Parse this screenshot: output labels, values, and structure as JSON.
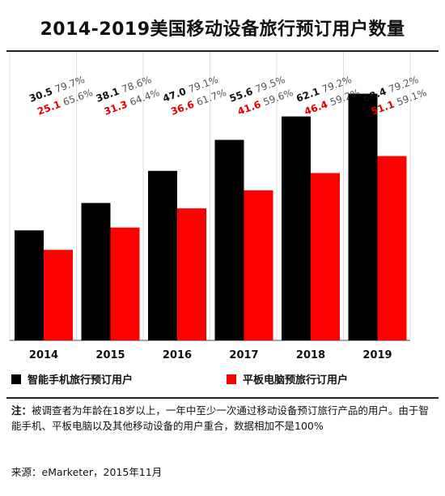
{
  "title": "2014-2019美国移动设备旅行预订用户数量",
  "legend": [
    {
      "label": "智能手机旅行预订用户",
      "color": "#000000"
    },
    {
      "label": "平板电脑预旅行订用户",
      "color": "#ff0000"
    }
  ],
  "note": {
    "prefix": "注：",
    "text": "被调查者为年龄在18岁以上，一年中至少一次通过移动设备预订旅行产品的用户。由于智能手机、平板电脑以及其他移动设备的用户重合，数据相加不是100%"
  },
  "source": "来源：eMarketer，2015年11月",
  "chart_data": {
    "type": "bar",
    "categories": [
      "2014",
      "2015",
      "2016",
      "2017",
      "2018",
      "2019"
    ],
    "series": [
      {
        "name": "智能手机旅行预订用户",
        "values": [
          30.5,
          38.1,
          47.0,
          55.6,
          62.1,
          68.4
        ],
        "value_labels": [
          "30.5",
          "38.1",
          "47.0",
          "55.6",
          "62.1",
          "68.4"
        ],
        "percent_labels": [
          "79.7%",
          "78.6%",
          "79.1%",
          "79.5%",
          "79.2%",
          "79.2%"
        ],
        "color": "#000000"
      },
      {
        "name": "平板电脑预旅行订用户",
        "values": [
          25.1,
          31.3,
          36.6,
          41.6,
          46.4,
          51.1
        ],
        "value_labels": [
          "25.1",
          "31.3",
          "36.6",
          "41.6",
          "46.4",
          "51.1"
        ],
        "percent_labels": [
          "65.6%",
          "64.4%",
          "61.7%",
          "59.6%",
          "59.2%",
          "59.1%"
        ],
        "color": "#ff0000"
      }
    ],
    "ylim": [
      0,
      80
    ],
    "grid": false,
    "legend_position": "bottom"
  }
}
